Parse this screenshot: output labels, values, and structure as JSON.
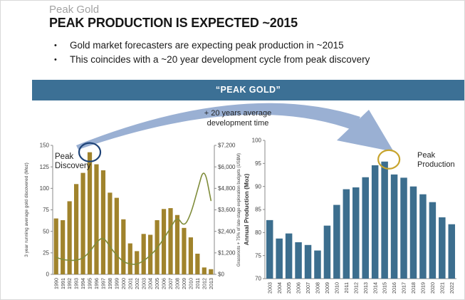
{
  "slide": {
    "kicker": "Peak Gold",
    "title": "PEAK PRODUCTION IS EXPECTED ~2015",
    "bullet_glyph": "•",
    "bullets": [
      "Gold market forecasters are expecting peak production in ~2015",
      "This coincides with a ~20 year development cycle from peak discovery"
    ],
    "banner": "“PEAK GOLD”",
    "arrow_note_line1": "+ 20 years average",
    "arrow_note_line2": "development time"
  },
  "colors": {
    "banner_bg": "#3c7095",
    "gold_bar": "#a0832c",
    "olive_line": "#7f8c3a",
    "blue_bar": "#3c6e8e",
    "arrow": "#9ab0d3",
    "navy_circle": "#1f4478",
    "gold_circle": "#c7a42d",
    "axis": "#8a8a8a",
    "tick_text": "#404040"
  },
  "chart_data": [
    {
      "type": "bar",
      "title": "",
      "categories": [
        "1990",
        "1991",
        "1992",
        "1993",
        "1994",
        "1995",
        "1996",
        "1997",
        "1998",
        "1999",
        "2000",
        "2001",
        "2002",
        "2003",
        "2004",
        "2005",
        "2006",
        "2007",
        "2008",
        "2009",
        "2010",
        "2011",
        "2012",
        "2013"
      ],
      "series": [
        {
          "name": "3 year running average gold discovered (Moz)",
          "kind": "bar",
          "axis": "left",
          "values": [
            65,
            63,
            85,
            105,
            118,
            142,
            128,
            121,
            95,
            89,
            64,
            36,
            27,
            47,
            46,
            63,
            76,
            77,
            69,
            54,
            43,
            24,
            8,
            6
          ]
        },
        {
          "name": "Grassroots + 75% of late-stage exploration budgets (US$M)",
          "kind": "line",
          "axis": "right",
          "values": [
            950,
            820,
            780,
            780,
            900,
            1250,
            1800,
            2100,
            1550,
            1050,
            700,
            560,
            560,
            750,
            1050,
            1450,
            2000,
            2600,
            3240,
            2640,
            3350,
            4700,
            6040,
            4120
          ]
        }
      ],
      "ylabel": "3 year running average gold discovered (Moz)",
      "ylim": [
        0,
        150
      ],
      "yticks": [
        0,
        25,
        50,
        75,
        100,
        125,
        150
      ],
      "y2label": "Grassroots + 75% of late-stage exploration budgets (US$M)",
      "y2lim": [
        0,
        7200
      ],
      "y2ticks": [
        "$0",
        "$1,200",
        "$2,400",
        "$3,600",
        "$4,800",
        "$6,000",
        "$7,200"
      ],
      "grid": false,
      "legend": "none",
      "annotation": {
        "line1": "Peak",
        "line2": "Discovery",
        "circled_category": "1995",
        "circle_color": "#1f4478"
      }
    },
    {
      "type": "bar",
      "title": "",
      "categories": [
        "2003",
        "2004",
        "2005",
        "2006",
        "2007",
        "2008",
        "2009",
        "2010",
        "2011",
        "2012",
        "2013",
        "2014",
        "2015",
        "2016",
        "2017",
        "2018",
        "2019",
        "2020",
        "2021",
        "2022"
      ],
      "series": [
        {
          "name": "Annual Production (Moz)",
          "kind": "bar",
          "axis": "left",
          "values": [
            82.7,
            78.7,
            79.8,
            77.9,
            77.3,
            76.1,
            81.5,
            86.0,
            89.4,
            89.8,
            92.0,
            94.6,
            95.4,
            92.6,
            91.9,
            90.0,
            88.3,
            86.6,
            83.3,
            81.8
          ]
        }
      ],
      "ylabel": "Annual Production (Moz)",
      "ylim": [
        70,
        100
      ],
      "yticks": [
        70,
        75,
        80,
        85,
        90,
        95,
        100
      ],
      "grid": false,
      "legend": "none",
      "annotation": {
        "line1": "Peak",
        "line2": "Production",
        "circled_category": "2015",
        "circle_color": "#c7a42d"
      }
    }
  ]
}
